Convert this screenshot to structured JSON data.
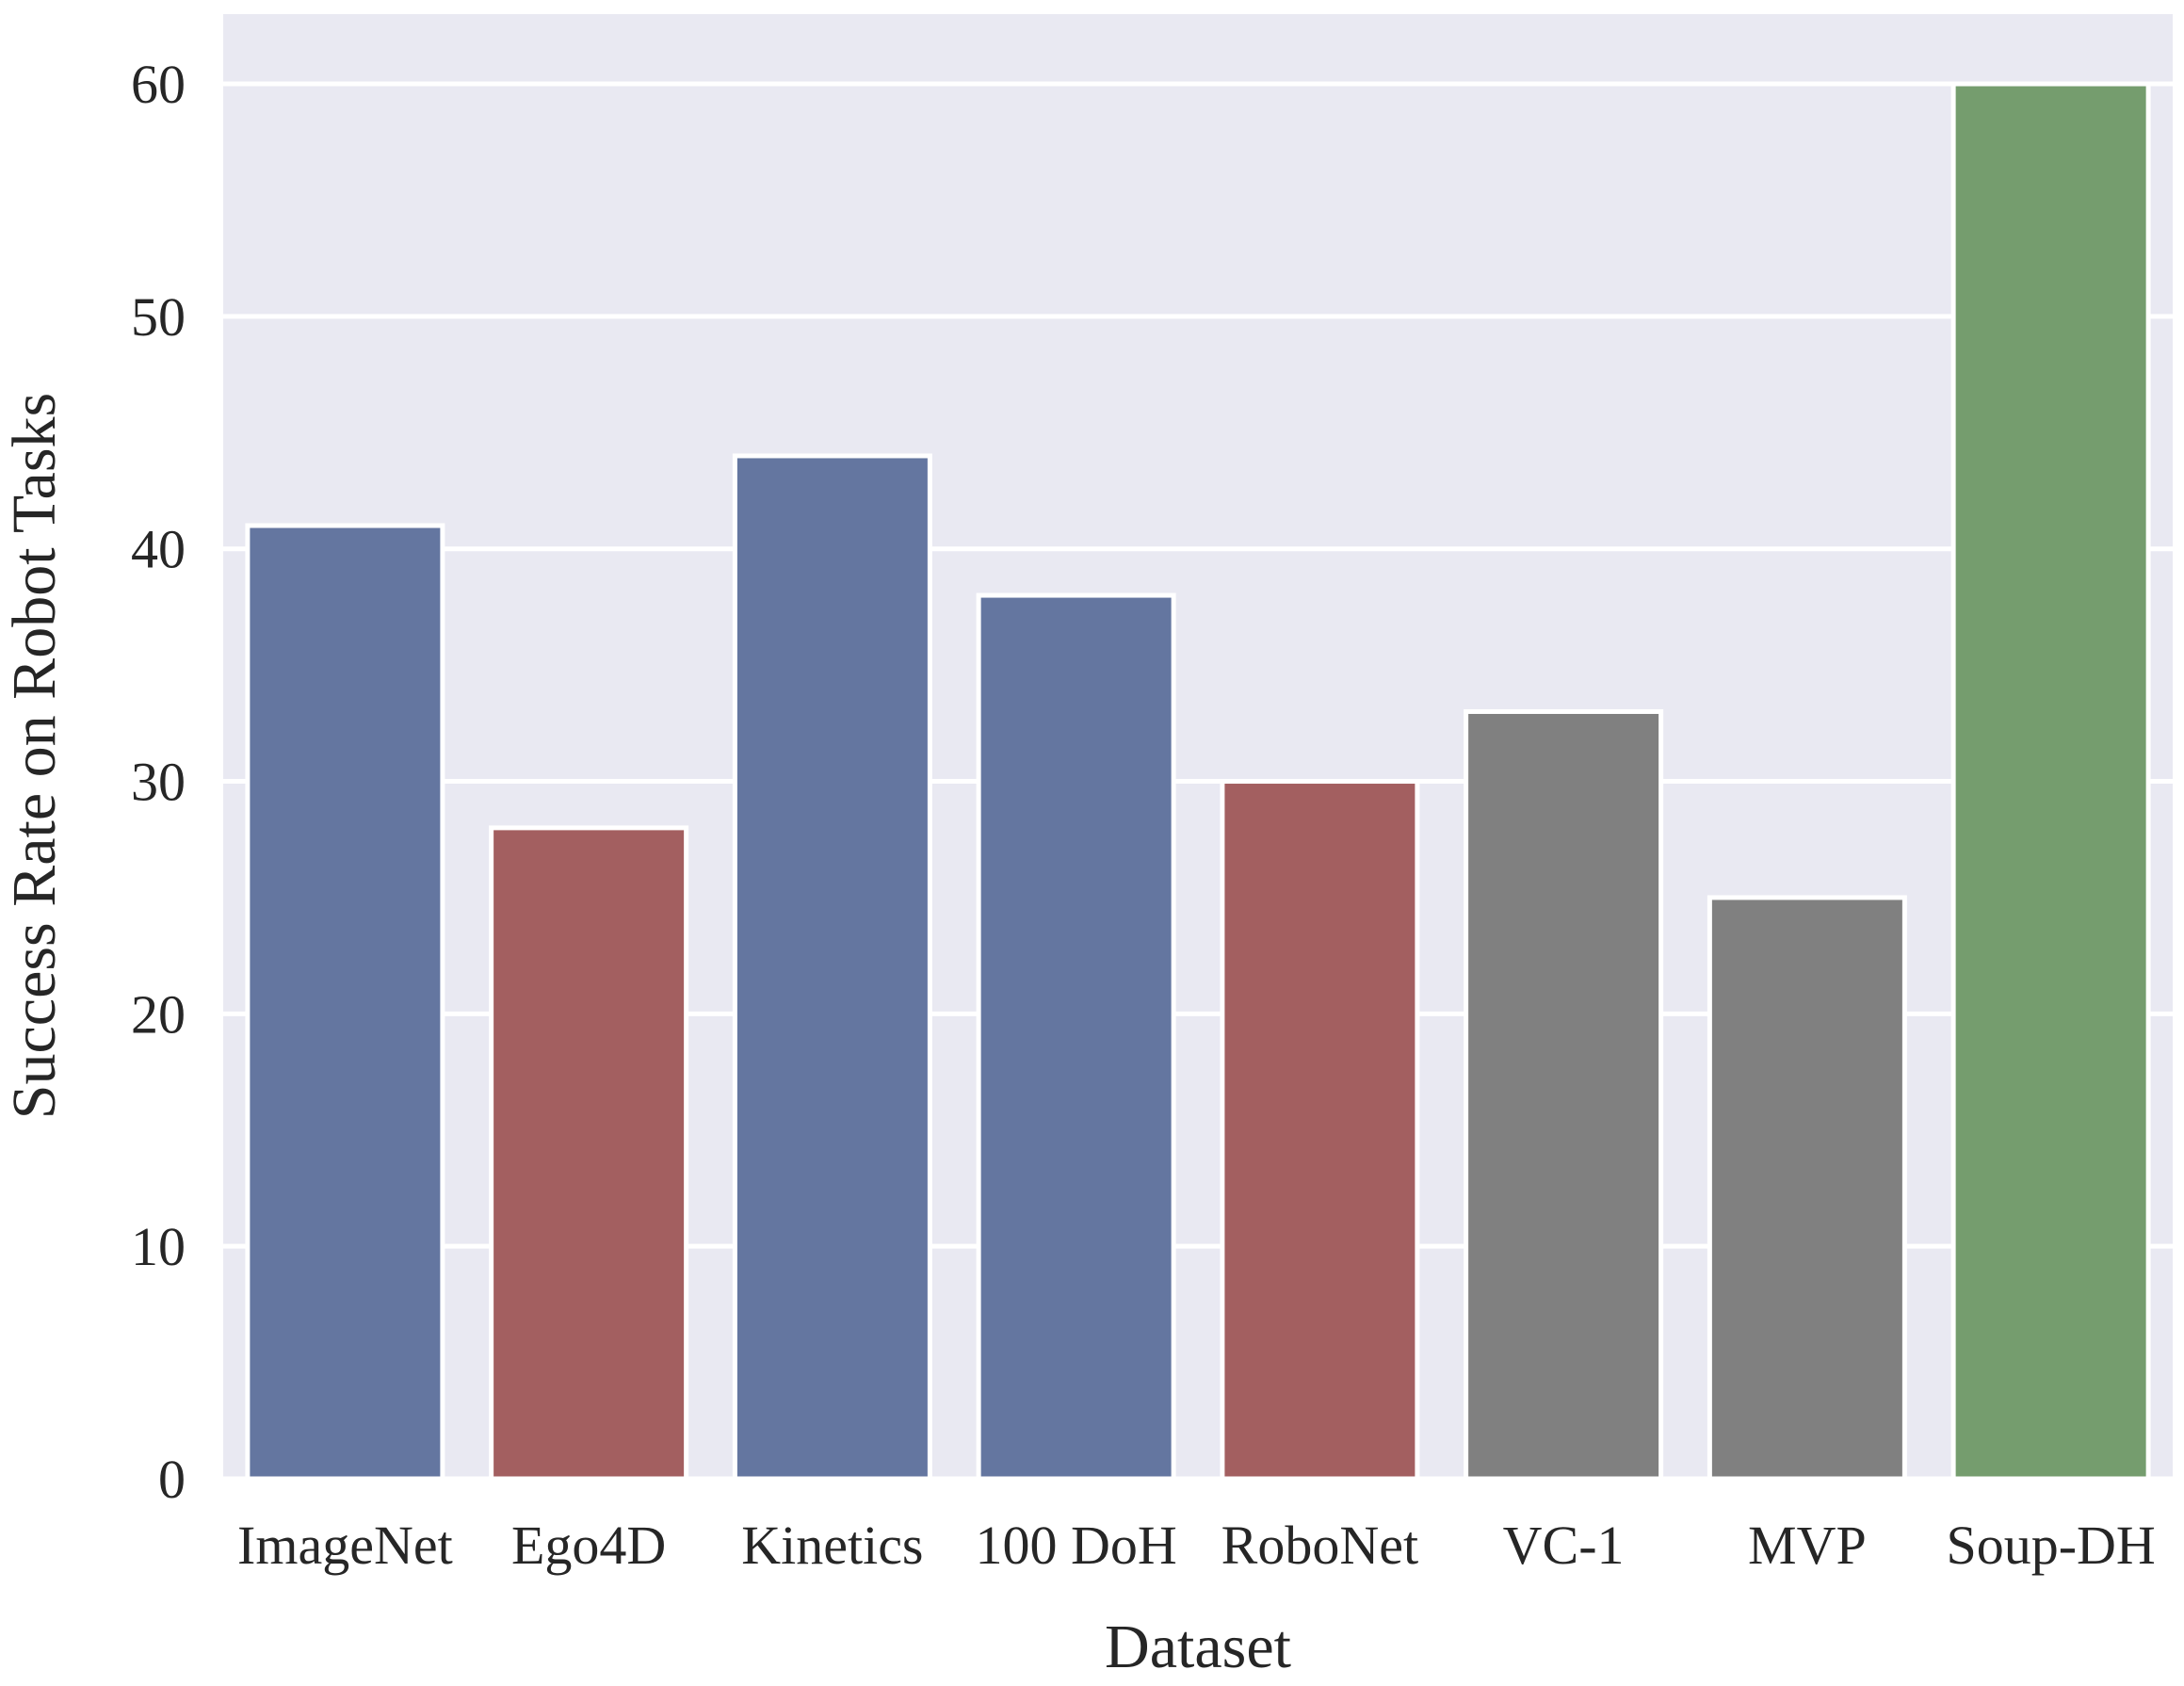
{
  "chart_data": {
    "type": "bar",
    "xlabel": "Dataset",
    "ylabel": "Success Rate on Robot Tasks",
    "categories": [
      "ImageNet",
      "Ego4D",
      "Kinetics",
      "100 DoH",
      "RoboNet",
      "VC-1",
      "MVP",
      "Soup-DH"
    ],
    "values": [
      41,
      28,
      44,
      38,
      30,
      33,
      25,
      60
    ],
    "bar_colors": [
      "#6476a0",
      "#a35f60",
      "#6476a0",
      "#6476a0",
      "#a35f60",
      "#808080",
      "#808080",
      "#759d6e"
    ],
    "ylim": [
      0,
      63
    ],
    "yticks": [
      0,
      10,
      20,
      30,
      40,
      50,
      60
    ],
    "grid": true,
    "background_color": "#e9e9f2",
    "grid_color": "#ffffff"
  }
}
